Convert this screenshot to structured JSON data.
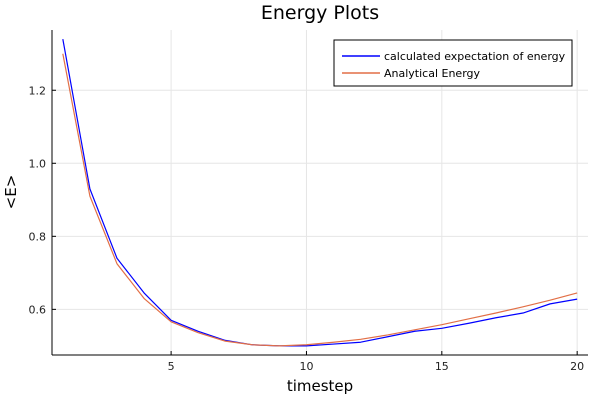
{
  "chart_data": {
    "type": "line",
    "title": "Energy Plots",
    "xlabel": "timestep",
    "ylabel": "<E>",
    "xlim": [
      0.6,
      20.4
    ],
    "ylim": [
      0.475,
      1.365
    ],
    "xticks": [
      5,
      10,
      15,
      20
    ],
    "yticks": [
      0.6,
      0.8,
      1.0,
      1.2
    ],
    "xtick_labels": [
      "5",
      "10",
      "15",
      "20"
    ],
    "ytick_labels": [
      "0.6",
      "0.8",
      "1.0",
      "1.2"
    ],
    "grid": true,
    "legend_position": "top-right",
    "x": [
      1,
      2,
      3,
      4,
      5,
      6,
      7,
      8,
      9,
      10,
      11,
      12,
      13,
      14,
      15,
      16,
      17,
      18,
      19,
      20
    ],
    "series": [
      {
        "name": "calculated expectation of energy",
        "color": "#0000ff",
        "values": [
          1.34,
          0.93,
          0.74,
          0.645,
          0.57,
          0.54,
          0.515,
          0.503,
          0.5,
          0.5,
          0.505,
          0.51,
          0.525,
          0.54,
          0.548,
          0.562,
          0.577,
          0.59,
          0.615,
          0.628
        ]
      },
      {
        "name": "Analytical Energy",
        "color": "#e26f46",
        "values": [
          1.3,
          0.91,
          0.725,
          0.63,
          0.566,
          0.536,
          0.513,
          0.503,
          0.5,
          0.503,
          0.51,
          0.518,
          0.53,
          0.544,
          0.558,
          0.574,
          0.59,
          0.607,
          0.625,
          0.645
        ]
      }
    ]
  }
}
